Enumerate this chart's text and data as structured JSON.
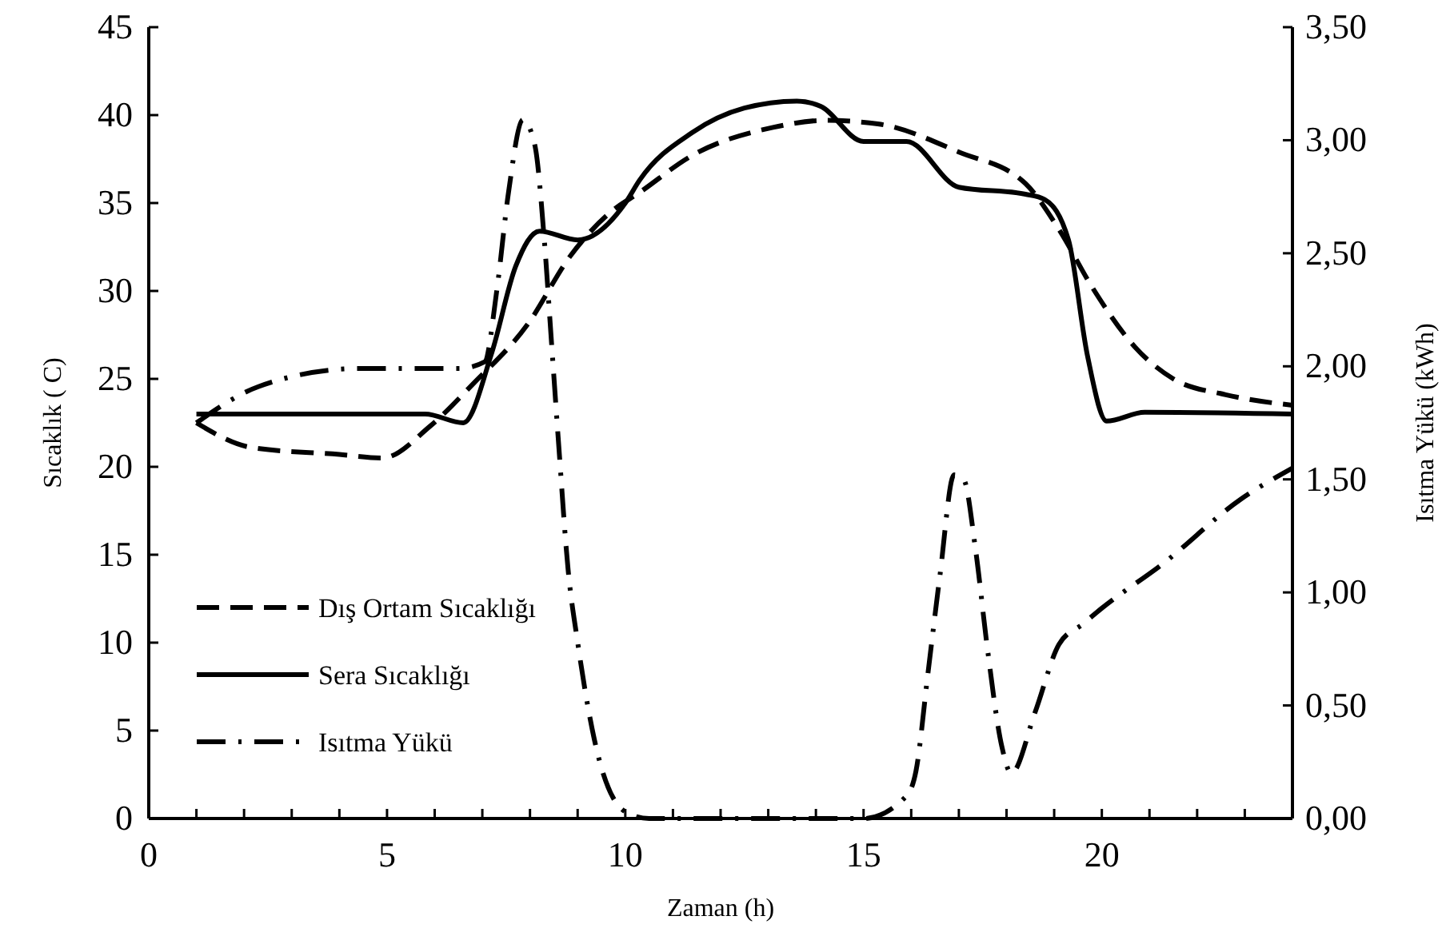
{
  "chart_data": {
    "type": "line",
    "xlabel": "Zaman (h)",
    "ylabel": "Sıcaklık ( C)",
    "y2label": "Isıtma Yükü (kWh)",
    "xlim": [
      0,
      24
    ],
    "xticks": [
      0,
      {
        "value": 1,
        "label": null
      },
      {
        "value": 2,
        "label": null
      },
      {
        "value": 3,
        "label": null
      },
      {
        "value": 4,
        "label": null
      },
      5,
      {
        "value": 6,
        "label": null
      },
      {
        "value": 7,
        "label": null
      },
      {
        "value": 8,
        "label": null
      },
      {
        "value": 9,
        "label": null
      },
      10,
      {
        "value": 11,
        "label": null
      },
      {
        "value": 12,
        "label": null
      },
      {
        "value": 13,
        "label": null
      },
      {
        "value": 14,
        "label": null
      },
      15,
      {
        "value": 16,
        "label": null
      },
      {
        "value": 17,
        "label": null
      },
      {
        "value": 18,
        "label": null
      },
      {
        "value": 19,
        "label": null
      },
      20,
      {
        "value": 21,
        "label": null
      },
      {
        "value": 22,
        "label": null
      },
      {
        "value": 23,
        "label": null
      },
      {
        "value": 24,
        "label": null
      }
    ],
    "ylim": [
      0,
      45
    ],
    "yticks": [
      0,
      5,
      10,
      15,
      20,
      25,
      30,
      35,
      40,
      45
    ],
    "y2lim": [
      0,
      3.5
    ],
    "y2ticks": [
      {
        "value": 0,
        "label": "0,00"
      },
      {
        "value": 0.5,
        "label": "0,50"
      },
      {
        "value": 1,
        "label": "1,00"
      },
      {
        "value": 1.5,
        "label": "1,50"
      },
      {
        "value": 2,
        "label": "2,00"
      },
      {
        "value": 2.5,
        "label": "2,50"
      },
      {
        "value": 3,
        "label": "3,00"
      },
      {
        "value": 3.5,
        "label": "3,50"
      }
    ],
    "grid": false,
    "legend": "bottom left",
    "marker": "none",
    "series": [
      {
        "name": "Dış Ortam Sıcaklığı",
        "color": "#000000",
        "line_style": "dashed",
        "x": [
          1,
          2.15,
          4,
          4.9,
          5.9,
          6.8,
          7.95,
          8.85,
          9.7,
          10.3,
          11.4,
          13.1,
          14.2,
          15.3,
          17,
          18.4,
          19.1,
          19.8,
          20.7,
          21.5,
          22.6,
          24
        ],
        "values": [
          22.5,
          21.1,
          20.7,
          20.5,
          22.3,
          24.7,
          28.1,
          32,
          34.5,
          35.6,
          37.7,
          39.3,
          39.7,
          39.5,
          37.9,
          36.1,
          33.5,
          30.2,
          26.8,
          25,
          24.1,
          23.5
        ]
      },
      {
        "name": "Sera Sıcaklığı",
        "color": "#000000",
        "line_style": "solid",
        "x": [
          1,
          5.8,
          6.6,
          7.2,
          7.7,
          8.2,
          9,
          10,
          10.3,
          11.4,
          12.5,
          13.6,
          14.1,
          15,
          15.9,
          17,
          18.4,
          18.8,
          19.3,
          19.7,
          20.1,
          20.9,
          24
        ],
        "values": [
          23,
          23,
          22.5,
          26.5,
          31.4,
          33.4,
          32.9,
          35,
          36.3,
          39,
          40.4,
          40.8,
          40.5,
          38.5,
          38.5,
          35.9,
          35.5,
          35.2,
          32.9,
          26.3,
          22.6,
          23.1,
          23
        ]
      },
      {
        "name": "Isıtma Yükü",
        "color": "#000000",
        "line_style": "dashdot",
        "axis": "y2",
        "x": [
          1,
          2.3,
          4.4,
          6.5,
          7.05,
          7.3,
          7.55,
          7.85,
          8.1,
          8.3,
          8.45,
          8.6,
          8.8,
          9,
          9.35,
          10,
          10.5,
          15,
          15.9,
          16.1,
          16.35,
          16.6,
          16.9,
          17.1,
          17.35,
          17.6,
          17.9,
          18.1,
          18.6,
          19.1,
          19.6,
          20,
          21.3,
          22.9,
          24
        ],
        "values": [
          1.75,
          1.91,
          1.99,
          1.99,
          2.02,
          2.33,
          2.77,
          3.09,
          2.98,
          2.56,
          2.11,
          1.66,
          1.1,
          0.78,
          0.35,
          0.03,
          0,
          0,
          0.1,
          0.21,
          0.64,
          1.07,
          1.52,
          1.5,
          1.19,
          0.75,
          0.32,
          0.2,
          0.47,
          0.77,
          0.86,
          0.93,
          1.13,
          1.41,
          1.55
        ]
      }
    ]
  }
}
